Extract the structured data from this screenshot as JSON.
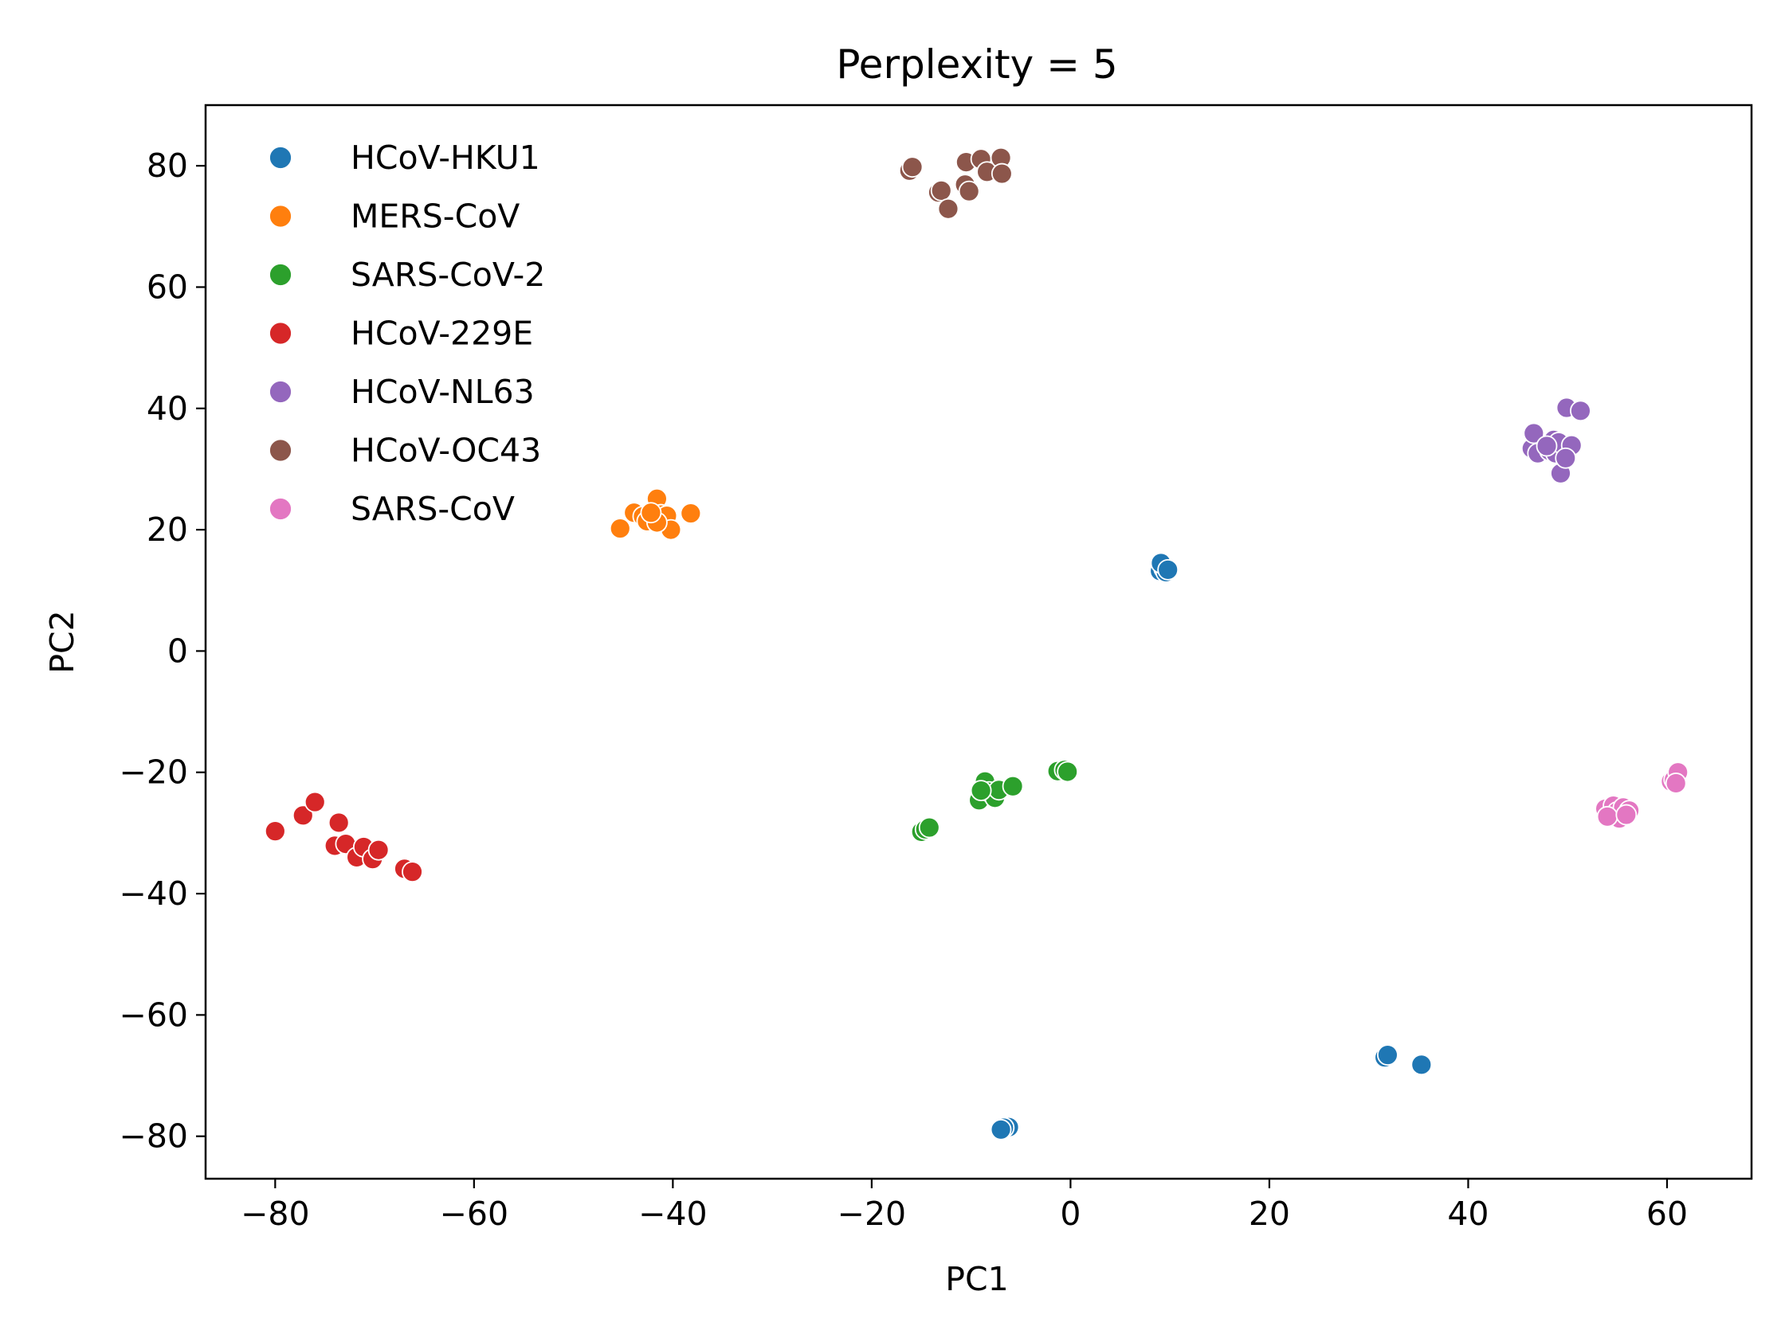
{
  "chart_data": {
    "type": "scatter",
    "title": "Perplexity = 5",
    "xlabel": "PC1",
    "ylabel": "PC2",
    "xlim": [
      -87,
      68.5
    ],
    "ylim": [
      -87,
      90
    ],
    "xticks": [
      -80,
      -60,
      -40,
      -20,
      0,
      20,
      40,
      60
    ],
    "yticks": [
      -80,
      -60,
      -40,
      -20,
      0,
      20,
      40,
      60,
      80
    ],
    "grid": false,
    "legend_position": "top-left",
    "series": [
      {
        "name": "HCoV-HKU1",
        "color": "#1f77b4",
        "points": [
          [
            9.0,
            13.2
          ],
          [
            9.4,
            13.6
          ],
          [
            9.6,
            13.0
          ],
          [
            9.1,
            14.5
          ],
          [
            9.8,
            13.4
          ],
          [
            31.6,
            -67.0
          ],
          [
            31.9,
            -66.6
          ],
          [
            35.3,
            -68.2
          ],
          [
            -6.2,
            -78.5
          ],
          [
            -6.7,
            -78.6
          ],
          [
            -7.0,
            -78.9
          ]
        ]
      },
      {
        "name": "MERS-CoV",
        "color": "#ff7f0e",
        "points": [
          [
            -45.3,
            20.2
          ],
          [
            -43.9,
            22.8
          ],
          [
            -43.0,
            22.2
          ],
          [
            -42.6,
            21.4
          ],
          [
            -41.9,
            23.0
          ],
          [
            -41.6,
            25.1
          ],
          [
            -41.2,
            22.5
          ],
          [
            -41.0,
            21.8
          ],
          [
            -40.8,
            21.1
          ],
          [
            -40.6,
            22.3
          ],
          [
            -40.2,
            20.0
          ],
          [
            -38.2,
            22.7
          ],
          [
            -41.6,
            21.2
          ],
          [
            -42.2,
            22.8
          ]
        ]
      },
      {
        "name": "SARS-CoV-2",
        "color": "#2ca02c",
        "points": [
          [
            -15.0,
            -29.8
          ],
          [
            -14.6,
            -29.4
          ],
          [
            -14.2,
            -29.1
          ],
          [
            -9.2,
            -24.6
          ],
          [
            -8.8,
            -22.3
          ],
          [
            -8.6,
            -21.5
          ],
          [
            -8.2,
            -23.2
          ],
          [
            -7.6,
            -24.2
          ],
          [
            -7.2,
            -22.9
          ],
          [
            -9.0,
            -23.0
          ],
          [
            -5.8,
            -22.3
          ],
          [
            -1.3,
            -19.8
          ],
          [
            -0.6,
            -19.6
          ],
          [
            -0.3,
            -19.9
          ]
        ]
      },
      {
        "name": "HCoV-229E",
        "color": "#d62728",
        "points": [
          [
            -80.0,
            -29.7
          ],
          [
            -77.2,
            -27.1
          ],
          [
            -76.0,
            -24.9
          ],
          [
            -73.6,
            -28.3
          ],
          [
            -74.0,
            -32.1
          ],
          [
            -72.9,
            -31.8
          ],
          [
            -71.8,
            -34.0
          ],
          [
            -71.1,
            -32.3
          ],
          [
            -70.2,
            -34.3
          ],
          [
            -69.6,
            -32.8
          ],
          [
            -67.0,
            -35.9
          ],
          [
            -66.2,
            -36.4
          ]
        ]
      },
      {
        "name": "HCoV-NL63",
        "color": "#9467bd",
        "points": [
          [
            46.4,
            33.4
          ],
          [
            46.6,
            35.9
          ],
          [
            47.0,
            32.6
          ],
          [
            48.2,
            33.0
          ],
          [
            48.8,
            32.6
          ],
          [
            48.6,
            34.8
          ],
          [
            49.1,
            34.4
          ],
          [
            49.3,
            29.3
          ],
          [
            49.9,
            40.1
          ],
          [
            50.4,
            33.9
          ],
          [
            51.3,
            39.6
          ],
          [
            47.9,
            33.8
          ],
          [
            49.8,
            31.8
          ]
        ]
      },
      {
        "name": "HCoV-OC43",
        "color": "#8c564b",
        "points": [
          [
            -16.2,
            79.2
          ],
          [
            -15.9,
            79.8
          ],
          [
            -13.3,
            75.6
          ],
          [
            -13.0,
            75.9
          ],
          [
            -12.3,
            72.9
          ],
          [
            -10.6,
            76.9
          ],
          [
            -10.5,
            80.6
          ],
          [
            -10.2,
            75.8
          ],
          [
            -9.0,
            81.1
          ],
          [
            -8.4,
            79.0
          ],
          [
            -7.0,
            81.3
          ],
          [
            -6.9,
            78.7
          ]
        ]
      },
      {
        "name": "SARS-CoV",
        "color": "#e377c2",
        "points": [
          [
            53.8,
            -26.0
          ],
          [
            54.3,
            -27.0
          ],
          [
            54.6,
            -25.5
          ],
          [
            55.0,
            -26.5
          ],
          [
            55.2,
            -27.6
          ],
          [
            55.6,
            -25.8
          ],
          [
            56.2,
            -26.3
          ],
          [
            54.0,
            -27.3
          ],
          [
            55.9,
            -27.0
          ],
          [
            60.4,
            -21.5
          ],
          [
            60.7,
            -21.2
          ],
          [
            61.1,
            -20.0
          ],
          [
            60.9,
            -21.8
          ]
        ]
      }
    ]
  }
}
